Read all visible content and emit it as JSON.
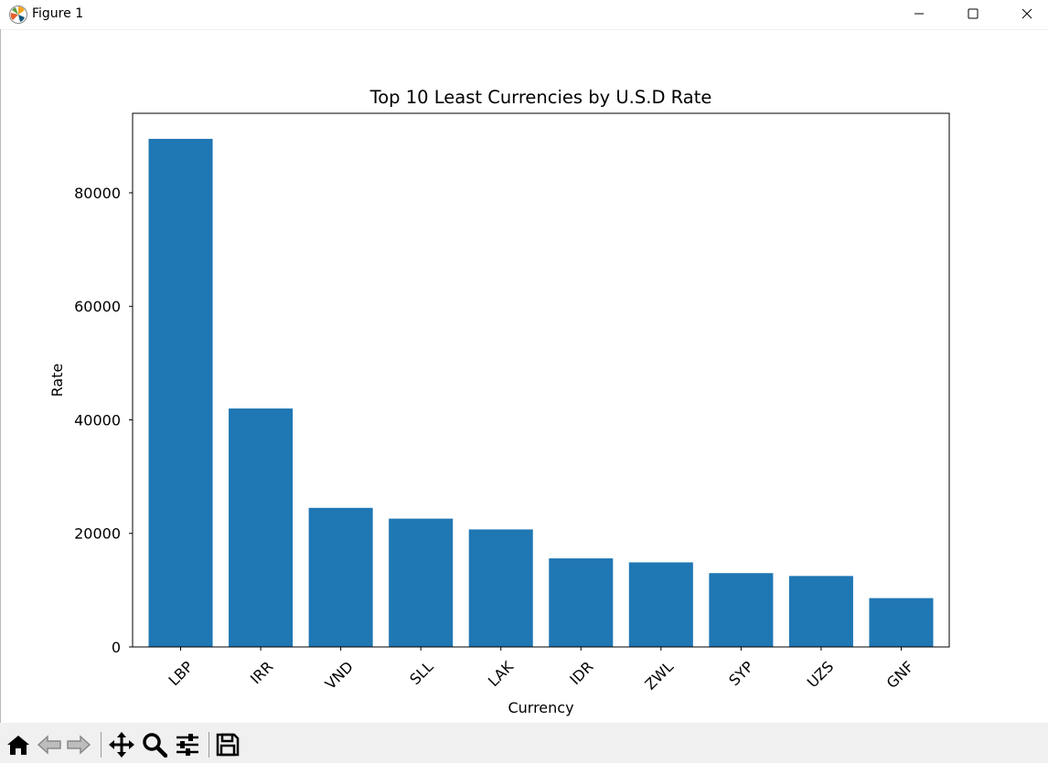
{
  "window": {
    "title": "Figure 1",
    "app_icon": "matplotlib-icon",
    "controls": [
      "minimize-icon",
      "maximize-icon",
      "close-icon"
    ]
  },
  "toolbar": {
    "buttons": [
      "home-icon",
      "back-icon",
      "forward-icon",
      "pan-icon",
      "zoom-icon",
      "configure-subplots-icon",
      "save-icon"
    ]
  },
  "chart_data": {
    "type": "bar",
    "title": "Top 10 Least Currencies by U.S.D Rate",
    "xlabel": "Currency",
    "ylabel": "Rate",
    "categories": [
      "LBP",
      "IRR",
      "VND",
      "SLL",
      "LAK",
      "IDR",
      "ZWL",
      "SYP",
      "UZS",
      "GNF"
    ],
    "values": [
      89500,
      42000,
      24500,
      22600,
      20700,
      15600,
      14900,
      13000,
      12500,
      8600
    ],
    "ylim": [
      0,
      94000
    ],
    "yticks": [
      0,
      20000,
      40000,
      60000,
      80000
    ],
    "xtick_rotation": 45,
    "grid": false,
    "bar_color": "#1f77b4"
  }
}
